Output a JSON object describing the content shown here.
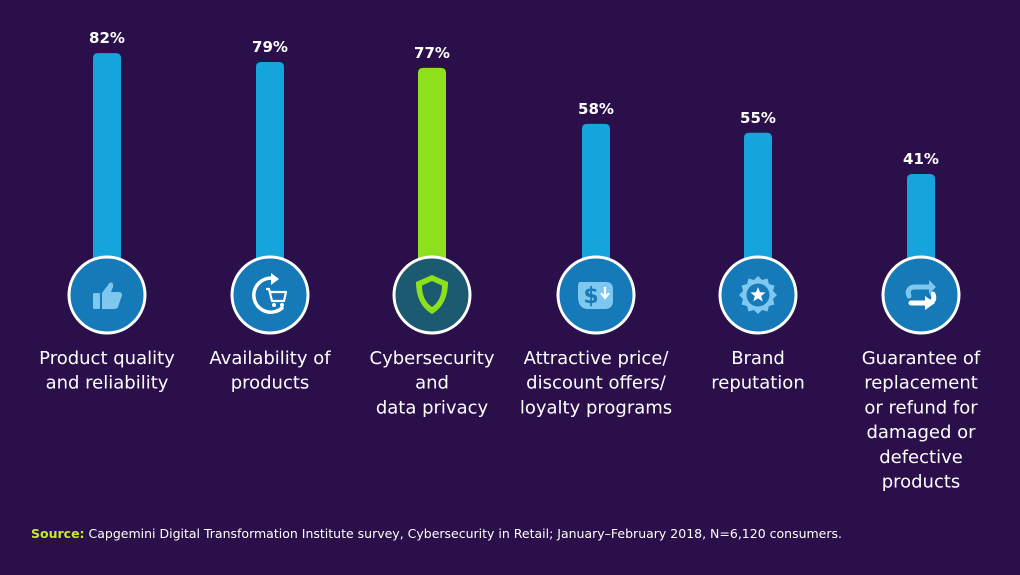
{
  "colors": {
    "background": "#2a0f4a",
    "bar": "#16a4dc",
    "highlight_bar": "#8ee01c",
    "icon_circle": "#1679b8",
    "icon_circle_highlight": "#1b5a70",
    "icon_fill": "#7ec8f0",
    "source_label": "#c6ea2d",
    "text": "#ffffff"
  },
  "chart_data": {
    "type": "bar",
    "title": "",
    "xlabel": "",
    "ylabel": "",
    "ylim": [
      0,
      100
    ],
    "grid": false,
    "categories": [
      "Product quality and reliability",
      "Availability of products",
      "Cybersecurity and data privacy",
      "Attractive price/ discount offers/ loyalty programs",
      "Brand reputation",
      "Guarantee of replacement or refund for damaged or defective products"
    ],
    "values": [
      82,
      79,
      77,
      58,
      55,
      41
    ],
    "value_labels": [
      "82%",
      "79%",
      "77%",
      "58%",
      "55%",
      "41%"
    ],
    "label_lines": [
      [
        "Product quality",
        "and reliability"
      ],
      [
        "Availability of",
        "products"
      ],
      [
        "Cybersecurity",
        "and",
        "data privacy"
      ],
      [
        "Attractive price/",
        "discount offers/",
        "loyalty programs"
      ],
      [
        "Brand",
        "reputation"
      ],
      [
        "Guarantee of",
        "replacement",
        "or refund for",
        "damaged or",
        "defective",
        "products"
      ]
    ],
    "icons": [
      "thumbs-up-icon",
      "cart-refresh-icon",
      "shield-icon",
      "dollar-discount-icon",
      "star-badge-icon",
      "exchange-arrows-icon"
    ],
    "highlight_index": 2
  },
  "source": {
    "label": "Source:",
    "text": " Capgemini Digital Transformation Institute survey, Cybersecurity in Retail; January–February 2018, N=6,120 consumers."
  }
}
